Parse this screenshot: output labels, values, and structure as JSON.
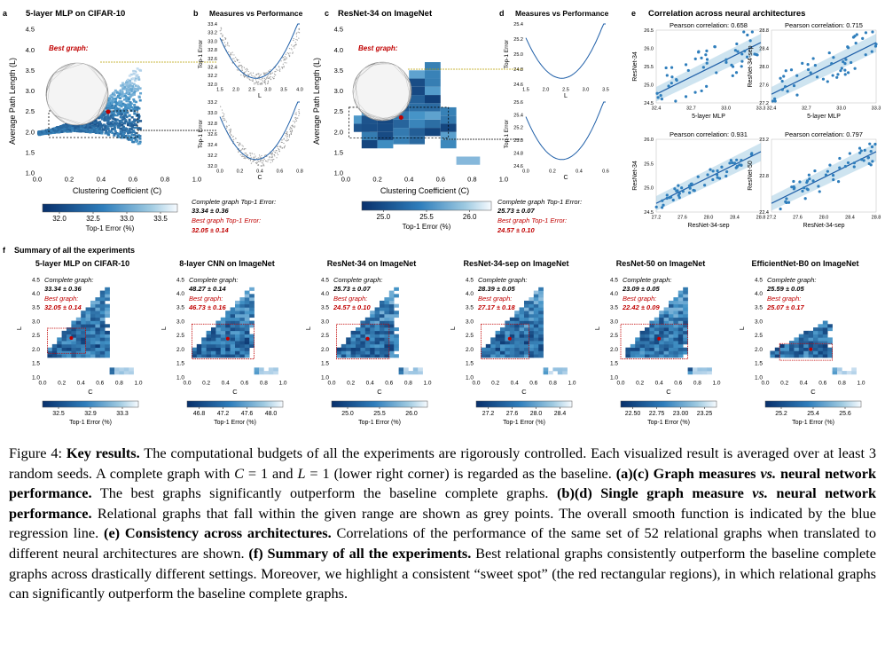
{
  "panels_top": {
    "a": {
      "letter": "a",
      "title": "5-layer MLP on CIFAR-10",
      "xlabel": "Clustering Coefficient (C)",
      "ylabel": "Average Path Length (L)",
      "best_graph": "Best graph:",
      "xticks": [
        "0.0",
        "0.2",
        "0.4",
        "0.6",
        "0.8",
        "1.0"
      ],
      "yticks": [
        "1.0",
        "1.5",
        "2.0",
        "2.5",
        "3.0",
        "3.5",
        "4.0",
        "4.5"
      ],
      "colorbar_ticks": [
        "32.0",
        "32.5",
        "33.0",
        "33.5"
      ],
      "colorbar_label": "Top-1 Error (%)"
    },
    "b": {
      "letter": "b",
      "title": "Measures vs Performance",
      "top_yticks": [
        "32.0",
        "32.2",
        "32.4",
        "32.6",
        "32.8",
        "33.0",
        "33.2",
        "33.4"
      ],
      "top_xticks": [
        "1.5",
        "2.0",
        "2.5",
        "3.0",
        "3.5",
        "4.0"
      ],
      "top_xlabel": "L",
      "bottom_yticks": [
        "32.0",
        "32.2",
        "32.4",
        "32.6",
        "32.8",
        "33.0",
        "33.2"
      ],
      "bottom_xticks": [
        "0.0",
        "0.2",
        "0.4",
        "0.6",
        "0.8"
      ],
      "bottom_xlabel": "C",
      "ylabel": "Top-1 Error",
      "complete_label": "Complete graph Top-1 Error:",
      "complete_value": "33.34 ± 0.36",
      "best_label": "Best graph Top-1 Error:",
      "best_value": "32.05 ± 0.14"
    },
    "c": {
      "letter": "c",
      "title": "ResNet-34 on ImageNet",
      "xlabel": "Clustering Coefficient (C)",
      "ylabel": "Average Path Length (L)",
      "best_graph": "Best graph:",
      "xticks": [
        "0.0",
        "0.2",
        "0.4",
        "0.6",
        "0.8",
        "1.0"
      ],
      "yticks": [
        "1.0",
        "1.5",
        "2.0",
        "2.5",
        "3.0",
        "3.5",
        "4.0",
        "4.5"
      ],
      "colorbar_ticks": [
        "25.0",
        "25.5",
        "26.0"
      ],
      "colorbar_label": "Top-1 Error (%)"
    },
    "d": {
      "letter": "d",
      "title": "Measures vs Performance",
      "top_yticks": [
        "24.6",
        "24.8",
        "25.0",
        "25.2",
        "25.4"
      ],
      "top_xticks": [
        "1.5",
        "2.0",
        "2.5",
        "3.0",
        "3.5"
      ],
      "top_xlabel": "L",
      "bottom_yticks": [
        "24.6",
        "24.8",
        "25.0",
        "25.2",
        "25.4",
        "25.6"
      ],
      "bottom_xticks": [
        "0.0",
        "0.2",
        "0.4",
        "0.6"
      ],
      "bottom_xlabel": "C",
      "ylabel": "Top-1 Error",
      "complete_label": "Complete graph Top-1 Error:",
      "complete_value": "25.73 ± 0.07",
      "best_label": "Best graph Top-1 Error:",
      "best_value": "24.57 ± 0.10"
    },
    "e": {
      "letter": "e",
      "title": "Correlation across neural architectures",
      "plots": [
        {
          "pearson": "Pearson correlation: 0.658",
          "xlabel": "5-layer MLP",
          "ylabel": "ResNet-34",
          "xticks": [
            "32.4",
            "32.7",
            "33.0",
            "33.3"
          ],
          "yticks": [
            "24.5",
            "25.0",
            "25.5",
            "26.0",
            "26.5"
          ]
        },
        {
          "pearson": "Pearson correlation: 0.715",
          "xlabel": "5-layer MLP",
          "ylabel": "ResNet-34-sep",
          "xticks": [
            "32.4",
            "32.7",
            "33.0",
            "33.3"
          ],
          "yticks": [
            "27.2",
            "27.6",
            "28.0",
            "28.4",
            "28.8"
          ]
        },
        {
          "pearson": "Pearson correlation: 0.931",
          "xlabel": "ResNet-34-sep",
          "ylabel": "ResNet-34",
          "xticks": [
            "27.2",
            "27.6",
            "28.0",
            "28.4",
            "28.8"
          ],
          "yticks": [
            "24.5",
            "25.0",
            "25.5",
            "26.0"
          ]
        },
        {
          "pearson": "Pearson correlation: 0.797",
          "xlabel": "ResNet-34-sep",
          "ylabel": "ResNet-50",
          "xticks": [
            "27.2",
            "27.6",
            "28.0",
            "28.4",
            "28.8"
          ],
          "yticks": [
            "22.4",
            "22.8",
            "23.2"
          ]
        }
      ]
    }
  },
  "panel_f": {
    "letter": "f",
    "title": "Summary of all the experiments",
    "xlabel": "C",
    "ylabel": "L",
    "colorbar_label": "Top-1 Error (%)",
    "complete_label": "Complete graph:",
    "best_label": "Best graph:",
    "xticks": [
      "0.0",
      "0.2",
      "0.4",
      "0.6",
      "0.8",
      "1.0"
    ],
    "yticks": [
      "1.0",
      "1.5",
      "2.0",
      "2.5",
      "3.0",
      "3.5",
      "4.0",
      "4.5"
    ],
    "items": [
      {
        "title": "5-layer MLP on CIFAR-10",
        "complete": "33.34 ± 0.36",
        "best": "32.05 ± 0.14",
        "colorbar_ticks": [
          "32.5",
          "32.9",
          "33.3"
        ]
      },
      {
        "title": "8-layer CNN on ImageNet",
        "complete": "48.27 ± 0.14",
        "best": "46.73 ± 0.16",
        "colorbar_ticks": [
          "46.8",
          "47.2",
          "47.6",
          "48.0"
        ]
      },
      {
        "title": "ResNet-34 on ImageNet",
        "complete": "25.73 ± 0.07",
        "best": "24.57 ± 0.10",
        "colorbar_ticks": [
          "25.0",
          "25.5",
          "26.0"
        ]
      },
      {
        "title": "ResNet-34-sep on ImageNet",
        "complete": "28.39 ± 0.05",
        "best": "27.17 ± 0.18",
        "colorbar_ticks": [
          "27.2",
          "27.6",
          "28.0",
          "28.4"
        ]
      },
      {
        "title": "ResNet-50 on ImageNet",
        "complete": "23.09 ± 0.05",
        "best": "22.42 ± 0.09",
        "colorbar_ticks": [
          "22.50",
          "22.75",
          "23.00",
          "23.25"
        ]
      },
      {
        "title": "EfficientNet-B0 on ImageNet",
        "complete": "25.59 ± 0.05",
        "best": "25.07 ± 0.17",
        "colorbar_ticks": [
          "25.2",
          "25.4",
          "25.6"
        ]
      }
    ]
  },
  "caption": {
    "fig_label": "Figure 4:",
    "bold1": "Key results.",
    "t1": " The computational budgets of all the experiments are rigorously controlled. Each visualized result is averaged over at least 3 random seeds. A complete graph with ",
    "m1": "C",
    "t2": " = 1 and ",
    "m2": "L",
    "t3": " = 1 (lower right corner) is regarded as the baseline. ",
    "bold2": "(a)(c) Graph measures ",
    "bold2i": "vs.",
    "bold2b": " neural network performance.",
    "t4": " The best graphs significantly outperform the baseline complete graphs. ",
    "bold3": "(b)(d) Single graph measure ",
    "bold3i": "vs.",
    "bold3b": " neural network performance.",
    "t5": " Relational graphs that fall within the given range are shown as grey points. The overall smooth function is indicated by the blue regression line. ",
    "bold4": "(e) Consistency across architectures.",
    "t6": " Correlations of the performance of the same set of 52 relational graphs when translated to different neural architectures are shown. ",
    "bold5": "(f) Summary of all the experiments.",
    "t7": " Best relational graphs consistently outperform the baseline complete graphs across drastically different settings. Moreover, we highlight a consistent “sweet spot” (the red rectangular regions), in which relational graphs can significantly outperform the baseline complete graphs."
  },
  "colors": {
    "dark_blue": "#08306b",
    "mid_blue": "#2f7ebc",
    "light_blue": "#c6dbef",
    "red": "#c00000",
    "regression": "#1f5fa8"
  }
}
